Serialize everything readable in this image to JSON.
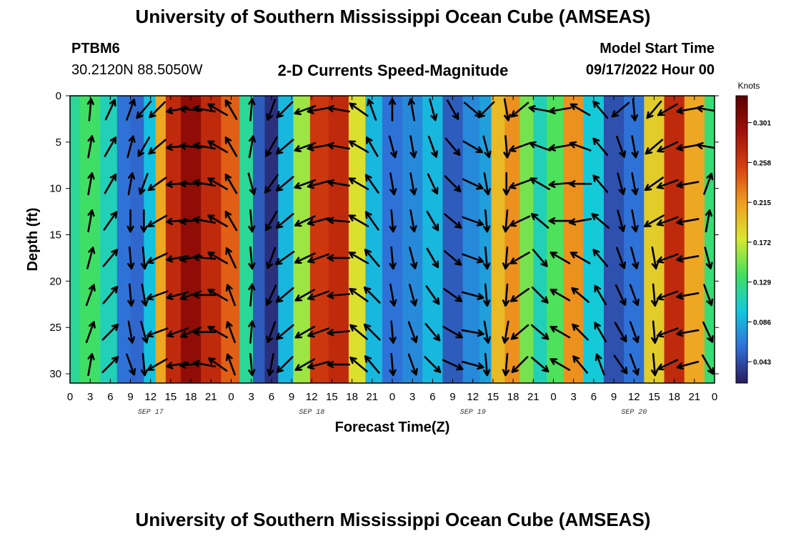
{
  "page": {
    "title_top": "University of Southern Mississippi Ocean Cube (AMSEAS)",
    "title_bottom": "University of Southern Mississippi Ocean Cube (AMSEAS)",
    "station": "PTBM6",
    "coordinates": "30.2120N  88.5050W",
    "subtitle": "2-D Currents Speed-Magnitude",
    "model_start_label": "Model Start Time",
    "model_start_value": "09/17/2022 Hour 00"
  },
  "chart_data": {
    "type": "heatmap",
    "title": "2-D Currents Speed-Magnitude",
    "xlabel": "Forecast Time(Z)",
    "ylabel": "Depth (ft)",
    "x_range_hours": [
      0,
      96
    ],
    "ylim": [
      0,
      31
    ],
    "y_inverted": true,
    "x_ticks_hours": [
      0,
      3,
      6,
      9,
      12,
      15,
      18,
      21,
      24,
      27,
      30,
      33,
      36,
      39,
      42,
      45,
      48,
      51,
      54,
      57,
      60,
      63,
      66,
      69,
      72,
      75,
      78,
      81,
      84,
      87,
      90,
      93,
      96
    ],
    "x_tick_labels": [
      "0",
      "3",
      "6",
      "9",
      "12",
      "15",
      "18",
      "21",
      "0",
      "3",
      "6",
      "9",
      "12",
      "15",
      "18",
      "21",
      "0",
      "3",
      "6",
      "9",
      "12",
      "15",
      "18",
      "21",
      "0",
      "3",
      "6",
      "9",
      "12",
      "15",
      "18",
      "21",
      "0"
    ],
    "y_ticks": [
      0,
      5,
      10,
      15,
      20,
      25,
      30
    ],
    "y_tick_labels": [
      "0",
      "5",
      "10",
      "15",
      "20",
      "25",
      "30"
    ],
    "date_labels": [
      {
        "label": "SEP 17",
        "hour": 12
      },
      {
        "label": "SEP 18",
        "hour": 36
      },
      {
        "label": "SEP 19",
        "hour": 60
      },
      {
        "label": "SEP 20",
        "hour": 84
      }
    ],
    "colorbar": {
      "unit": "Knots",
      "min": 0.02,
      "max": 0.33,
      "tick_values": [
        0.301,
        0.258,
        0.215,
        0.172,
        0.129,
        0.086,
        0.043
      ],
      "tick_labels": [
        "0.301",
        "0.258",
        "0.215",
        "0.172",
        "0.129",
        "0.086",
        "0.043"
      ],
      "colors": [
        "#2a1a5e",
        "#2f6fd8",
        "#12c8e0",
        "#3fe060",
        "#d8e830",
        "#f0a020",
        "#d84010",
        "#a01008",
        "#5a0000"
      ]
    },
    "arrow_depths_ft": [
      1.5,
      5.5,
      9.5,
      13.5,
      17.5,
      21.5,
      25.5,
      29
    ],
    "speed_columns": [
      {
        "hour": 0,
        "speed": 0.12
      },
      {
        "hour": 3,
        "speed": 0.135
      },
      {
        "hour": 6,
        "speed": 0.11
      },
      {
        "hour": 8,
        "speed": 0.06
      },
      {
        "hour": 10,
        "speed": 0.055
      },
      {
        "hour": 12,
        "speed": 0.095
      },
      {
        "hour": 13.5,
        "speed": 0.21
      },
      {
        "hour": 15,
        "speed": 0.27
      },
      {
        "hour": 18,
        "speed": 0.3
      },
      {
        "hour": 21,
        "speed": 0.27
      },
      {
        "hour": 24,
        "speed": 0.24
      },
      {
        "hour": 26.5,
        "speed": 0.12
      },
      {
        "hour": 28,
        "speed": 0.05
      },
      {
        "hour": 30,
        "speed": 0.03
      },
      {
        "hour": 32,
        "speed": 0.09
      },
      {
        "hour": 34.5,
        "speed": 0.16
      },
      {
        "hour": 37,
        "speed": 0.26
      },
      {
        "hour": 40,
        "speed": 0.27
      },
      {
        "hour": 43,
        "speed": 0.18
      },
      {
        "hour": 45,
        "speed": 0.09
      },
      {
        "hour": 48,
        "speed": 0.06
      },
      {
        "hour": 51,
        "speed": 0.07
      },
      {
        "hour": 54,
        "speed": 0.09
      },
      {
        "hour": 57,
        "speed": 0.05
      },
      {
        "hour": 60,
        "speed": 0.07
      },
      {
        "hour": 62,
        "speed": 0.08
      },
      {
        "hour": 63.5,
        "speed": 0.2
      },
      {
        "hour": 66,
        "speed": 0.22
      },
      {
        "hour": 68,
        "speed": 0.15
      },
      {
        "hour": 70,
        "speed": 0.11
      },
      {
        "hour": 72,
        "speed": 0.14
      },
      {
        "hour": 75,
        "speed": 0.22
      },
      {
        "hour": 78,
        "speed": 0.1
      },
      {
        "hour": 81,
        "speed": 0.045
      },
      {
        "hour": 84,
        "speed": 0.06
      },
      {
        "hour": 87,
        "speed": 0.19
      },
      {
        "hour": 90,
        "speed": 0.27
      },
      {
        "hour": 93,
        "speed": 0.21
      },
      {
        "hour": 96,
        "speed": 0.13
      }
    ],
    "arrow_columns": [
      {
        "hour": 1,
        "angles_deg": [
          0,
          0,
          0,
          0,
          0,
          0,
          0,
          0
        ],
        "visible": false
      },
      {
        "hour": 3,
        "angles_deg": [
          5,
          10,
          10,
          10,
          15,
          20,
          20,
          10
        ]
      },
      {
        "hour": 6,
        "angles_deg": [
          25,
          30,
          30,
          35,
          40,
          40,
          45,
          45
        ]
      },
      {
        "hour": 9,
        "angles_deg": [
          20,
          15,
          10,
          180,
          175,
          175,
          170,
          160
        ]
      },
      {
        "hour": 11,
        "angles_deg": [
          -140,
          -150,
          -160,
          180,
          175,
          170,
          165,
          175
        ]
      },
      {
        "hour": 13,
        "angles_deg": [
          -135,
          -130,
          -125,
          -120,
          -115,
          -110,
          -110,
          -120
        ]
      },
      {
        "hour": 16,
        "angles_deg": [
          -100,
          -95,
          -95,
          -95,
          -100,
          -105,
          -110,
          -100
        ]
      },
      {
        "hour": 18,
        "angles_deg": [
          -85,
          -85,
          -90,
          -95,
          -100,
          -110,
          -115,
          -95
        ]
      },
      {
        "hour": 20,
        "angles_deg": [
          -80,
          -80,
          -80,
          -80,
          -85,
          -90,
          -90,
          -80
        ]
      },
      {
        "hour": 22,
        "angles_deg": [
          -60,
          -60,
          -60,
          -60,
          -60,
          -60,
          -60,
          -55
        ]
      },
      {
        "hour": 24,
        "angles_deg": [
          -30,
          -30,
          -30,
          -30,
          -25,
          -20,
          -20,
          -20
        ]
      },
      {
        "hour": 27,
        "angles_deg": [
          5,
          10,
          165,
          175,
          175,
          5,
          5,
          175
        ]
      },
      {
        "hour": 30,
        "angles_deg": [
          -160,
          -150,
          -145,
          -150,
          -160,
          -155,
          -160,
          -170
        ]
      },
      {
        "hour": 32,
        "angles_deg": [
          -135,
          -130,
          -130,
          -130,
          -125,
          -130,
          -130,
          -135
        ]
      },
      {
        "hour": 35,
        "angles_deg": [
          -110,
          -110,
          -110,
          -115,
          -115,
          -120,
          -120,
          -120
        ]
      },
      {
        "hour": 37,
        "angles_deg": [
          -100,
          -100,
          -105,
          -105,
          -110,
          -110,
          -110,
          -105
        ]
      },
      {
        "hour": 40,
        "angles_deg": [
          -80,
          -80,
          -80,
          -85,
          -90,
          -95,
          -95,
          -90
        ]
      },
      {
        "hour": 43,
        "angles_deg": [
          -55,
          -60,
          -60,
          -60,
          -60,
          -55,
          -50,
          -50
        ]
      },
      {
        "hour": 45,
        "angles_deg": [
          -20,
          -30,
          -35,
          -35,
          -40,
          -45,
          -45,
          -40
        ]
      },
      {
        "hour": 48,
        "angles_deg": [
          0,
          165,
          170,
          175,
          175,
          170,
          175,
          175
        ]
      },
      {
        "hour": 51,
        "angles_deg": [
          -10,
          170,
          170,
          170,
          165,
          165,
          160,
          160
        ]
      },
      {
        "hour": 54,
        "angles_deg": [
          165,
          160,
          155,
          150,
          150,
          145,
          140,
          135
        ]
      },
      {
        "hour": 57,
        "angles_deg": [
          150,
          140,
          135,
          130,
          130,
          125,
          120,
          115
        ]
      },
      {
        "hour": 60,
        "angles_deg": [
          130,
          120,
          115,
          110,
          110,
          105,
          100,
          105
        ]
      },
      {
        "hour": 62,
        "angles_deg": [
          -135,
          165,
          170,
          175,
          175,
          175,
          170,
          175
        ]
      },
      {
        "hour": 65,
        "angles_deg": [
          170,
          175,
          180,
          -175,
          -175,
          -175,
          -170,
          -175
        ]
      },
      {
        "hour": 67,
        "angles_deg": [
          -130,
          -110,
          -110,
          -115,
          -120,
          -125,
          -130,
          -135
        ]
      },
      {
        "hour": 70,
        "angles_deg": [
          -80,
          -70,
          -60,
          -50,
          140,
          135,
          130,
          130
        ]
      },
      {
        "hour": 73,
        "angles_deg": [
          -100,
          -100,
          -95,
          -90,
          -60,
          -60,
          -60,
          -60
        ]
      },
      {
        "hour": 76,
        "angles_deg": [
          -60,
          -70,
          -90,
          -100,
          -60,
          -50,
          -45,
          -40
        ]
      },
      {
        "hour": 79,
        "angles_deg": [
          -40,
          -40,
          -40,
          -50,
          -40,
          -30,
          -30,
          -20
        ]
      },
      {
        "hour": 82,
        "angles_deg": [
          -130,
          160,
          165,
          165,
          160,
          155,
          150,
          145
        ]
      },
      {
        "hour": 84,
        "angles_deg": [
          175,
          170,
          170,
          170,
          165,
          160,
          160,
          160
        ]
      },
      {
        "hour": 87,
        "angles_deg": [
          -140,
          -130,
          -125,
          -120,
          170,
          175,
          175,
          175
        ]
      },
      {
        "hour": 89,
        "angles_deg": [
          -120,
          -115,
          -110,
          -110,
          -110,
          -110,
          -110,
          -115
        ]
      },
      {
        "hour": 92,
        "angles_deg": [
          -100,
          -100,
          -100,
          -100,
          -100,
          -100,
          -100,
          -105
        ]
      },
      {
        "hour": 95,
        "angles_deg": [
          -80,
          -80,
          20,
          10,
          165,
          160,
          155,
          150
        ]
      }
    ]
  }
}
